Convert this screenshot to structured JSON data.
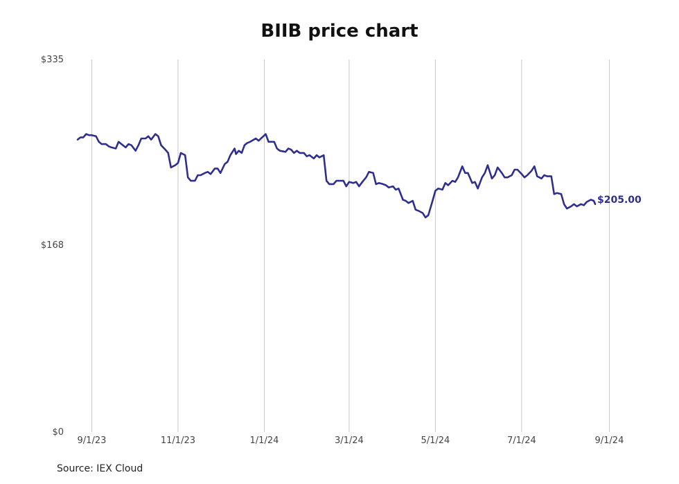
{
  "chart_data": {
    "type": "line",
    "title": "BIIB price chart",
    "source": "Source: IEX Cloud",
    "xlabel": "",
    "ylabel": "",
    "ylim": [
      0,
      335
    ],
    "y_ticks": [
      {
        "value": 0,
        "label": "$0"
      },
      {
        "value": 168,
        "label": "$168"
      },
      {
        "value": 335,
        "label": "$335"
      }
    ],
    "x_ticks": [
      {
        "date": "2023-09-01",
        "label": "9/1/23"
      },
      {
        "date": "2023-11-01",
        "label": "11/1/23"
      },
      {
        "date": "2024-01-01",
        "label": "1/1/24"
      },
      {
        "date": "2024-03-01",
        "label": "3/1/24"
      },
      {
        "date": "2024-05-01",
        "label": "5/1/24"
      },
      {
        "date": "2024-07-01",
        "label": "7/1/24"
      },
      {
        "date": "2024-09-01",
        "label": "9/1/24"
      }
    ],
    "xlim": [
      "2023-08-21",
      "2024-09-15"
    ],
    "grid": "vertical",
    "line_color": "#2e2e8f",
    "last_value_label": "$205.00",
    "series": [
      {
        "points": [
          [
            "2023-08-22",
            263
          ],
          [
            "2023-08-24",
            265
          ],
          [
            "2023-08-26",
            265
          ],
          [
            "2023-08-28",
            268
          ],
          [
            "2023-08-30",
            267
          ],
          [
            "2023-09-01",
            267
          ],
          [
            "2023-09-04",
            266
          ],
          [
            "2023-09-06",
            261
          ],
          [
            "2023-09-08",
            259
          ],
          [
            "2023-09-11",
            259
          ],
          [
            "2023-09-13",
            257
          ],
          [
            "2023-09-15",
            256
          ],
          [
            "2023-09-18",
            255
          ],
          [
            "2023-09-20",
            261
          ],
          [
            "2023-09-22",
            259
          ],
          [
            "2023-09-25",
            256
          ],
          [
            "2023-09-27",
            259
          ],
          [
            "2023-09-29",
            258
          ],
          [
            "2023-10-02",
            253
          ],
          [
            "2023-10-04",
            258
          ],
          [
            "2023-10-06",
            264
          ],
          [
            "2023-10-09",
            264
          ],
          [
            "2023-10-11",
            266
          ],
          [
            "2023-10-13",
            263
          ],
          [
            "2023-10-16",
            268
          ],
          [
            "2023-10-18",
            266
          ],
          [
            "2023-10-20",
            258
          ],
          [
            "2023-10-23",
            254
          ],
          [
            "2023-10-25",
            251
          ],
          [
            "2023-10-27",
            238
          ],
          [
            "2023-10-30",
            240
          ],
          [
            "2023-11-01",
            242
          ],
          [
            "2023-11-03",
            251
          ],
          [
            "2023-11-06",
            249
          ],
          [
            "2023-11-08",
            229
          ],
          [
            "2023-11-10",
            226
          ],
          [
            "2023-11-13",
            226
          ],
          [
            "2023-11-15",
            231
          ],
          [
            "2023-11-17",
            231
          ],
          [
            "2023-11-20",
            233
          ],
          [
            "2023-11-22",
            234
          ],
          [
            "2023-11-24",
            232
          ],
          [
            "2023-11-27",
            237
          ],
          [
            "2023-11-29",
            237
          ],
          [
            "2023-12-01",
            233
          ],
          [
            "2023-12-04",
            241
          ],
          [
            "2023-12-06",
            243
          ],
          [
            "2023-12-08",
            249
          ],
          [
            "2023-12-11",
            255
          ],
          [
            "2023-12-12",
            250
          ],
          [
            "2023-12-14",
            253
          ],
          [
            "2023-12-16",
            251
          ],
          [
            "2023-12-18",
            258
          ],
          [
            "2023-12-20",
            260
          ],
          [
            "2023-12-22",
            261
          ],
          [
            "2023-12-26",
            264
          ],
          [
            "2023-12-28",
            262
          ],
          [
            "2024-01-02",
            268
          ],
          [
            "2024-01-04",
            261
          ],
          [
            "2024-01-08",
            261
          ],
          [
            "2024-01-10",
            255
          ],
          [
            "2024-01-12",
            253
          ],
          [
            "2024-01-16",
            252
          ],
          [
            "2024-01-18",
            255
          ],
          [
            "2024-01-20",
            254
          ],
          [
            "2024-01-22",
            251
          ],
          [
            "2024-01-24",
            253
          ],
          [
            "2024-01-26",
            251
          ],
          [
            "2024-01-29",
            251
          ],
          [
            "2024-01-31",
            248
          ],
          [
            "2024-02-02",
            249
          ],
          [
            "2024-02-05",
            246
          ],
          [
            "2024-02-07",
            249
          ],
          [
            "2024-02-09",
            247
          ],
          [
            "2024-02-12",
            249
          ],
          [
            "2024-02-14",
            226
          ],
          [
            "2024-02-16",
            223
          ],
          [
            "2024-02-19",
            223
          ],
          [
            "2024-02-21",
            226
          ],
          [
            "2024-02-23",
            226
          ],
          [
            "2024-02-26",
            226
          ],
          [
            "2024-02-28",
            221
          ],
          [
            "2024-03-01",
            225
          ],
          [
            "2024-03-04",
            224
          ],
          [
            "2024-03-06",
            225
          ],
          [
            "2024-03-08",
            221
          ],
          [
            "2024-03-11",
            226
          ],
          [
            "2024-03-13",
            229
          ],
          [
            "2024-03-15",
            234
          ],
          [
            "2024-03-18",
            233
          ],
          [
            "2024-03-20",
            223
          ],
          [
            "2024-03-22",
            224
          ],
          [
            "2024-03-25",
            223
          ],
          [
            "2024-03-27",
            222
          ],
          [
            "2024-03-29",
            220
          ],
          [
            "2024-04-01",
            221
          ],
          [
            "2024-04-03",
            218
          ],
          [
            "2024-04-05",
            219
          ],
          [
            "2024-04-08",
            209
          ],
          [
            "2024-04-10",
            208
          ],
          [
            "2024-04-12",
            206
          ],
          [
            "2024-04-15",
            208
          ],
          [
            "2024-04-17",
            200
          ],
          [
            "2024-04-19",
            199
          ],
          [
            "2024-04-22",
            197
          ],
          [
            "2024-04-24",
            193
          ],
          [
            "2024-04-26",
            195
          ],
          [
            "2024-04-29",
            208
          ],
          [
            "2024-05-01",
            217
          ],
          [
            "2024-05-03",
            219
          ],
          [
            "2024-05-06",
            218
          ],
          [
            "2024-05-08",
            224
          ],
          [
            "2024-05-10",
            222
          ],
          [
            "2024-05-13",
            226
          ],
          [
            "2024-05-15",
            225
          ],
          [
            "2024-05-17",
            229
          ],
          [
            "2024-05-20",
            239
          ],
          [
            "2024-05-22",
            233
          ],
          [
            "2024-05-24",
            233
          ],
          [
            "2024-05-27",
            224
          ],
          [
            "2024-05-29",
            225
          ],
          [
            "2024-05-31",
            219
          ],
          [
            "2024-06-03",
            229
          ],
          [
            "2024-06-05",
            233
          ],
          [
            "2024-06-07",
            240
          ],
          [
            "2024-06-10",
            228
          ],
          [
            "2024-06-12",
            231
          ],
          [
            "2024-06-14",
            238
          ],
          [
            "2024-06-17",
            233
          ],
          [
            "2024-06-19",
            229
          ],
          [
            "2024-06-21",
            229
          ],
          [
            "2024-06-24",
            231
          ],
          [
            "2024-06-26",
            236
          ],
          [
            "2024-06-28",
            236
          ],
          [
            "2024-07-01",
            232
          ],
          [
            "2024-07-03",
            229
          ],
          [
            "2024-07-05",
            231
          ],
          [
            "2024-07-08",
            235
          ],
          [
            "2024-07-10",
            239
          ],
          [
            "2024-07-12",
            230
          ],
          [
            "2024-07-15",
            228
          ],
          [
            "2024-07-17",
            231
          ],
          [
            "2024-07-19",
            230
          ],
          [
            "2024-07-22",
            230
          ],
          [
            "2024-07-24",
            214
          ],
          [
            "2024-07-26",
            215
          ],
          [
            "2024-07-29",
            214
          ],
          [
            "2024-07-31",
            205
          ],
          [
            "2024-08-02",
            201
          ],
          [
            "2024-08-05",
            203
          ],
          [
            "2024-08-07",
            205
          ],
          [
            "2024-08-09",
            203
          ],
          [
            "2024-08-12",
            205
          ],
          [
            "2024-08-14",
            204
          ],
          [
            "2024-08-16",
            207
          ],
          [
            "2024-08-19",
            209
          ],
          [
            "2024-08-21",
            208
          ],
          [
            "2024-08-22",
            205
          ]
        ]
      }
    ]
  }
}
